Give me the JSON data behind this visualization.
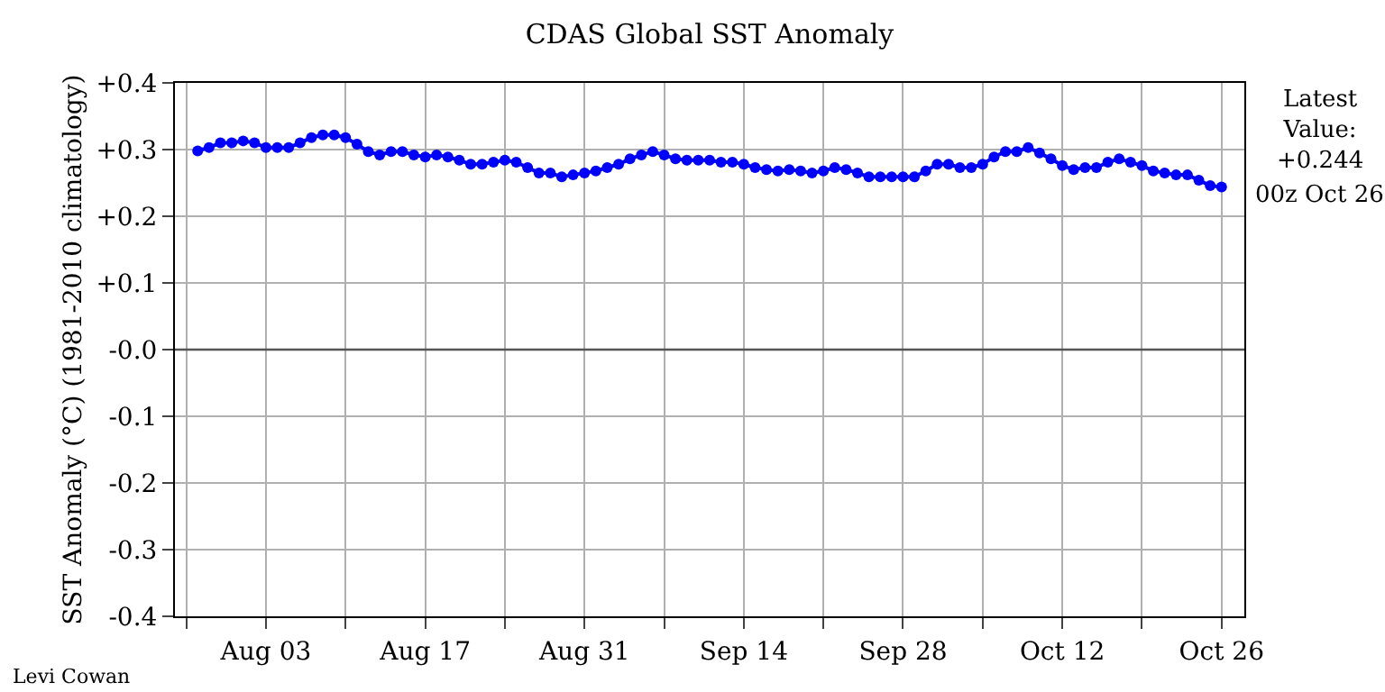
{
  "chart_data": {
    "type": "line",
    "title": "CDAS Global SST Anomaly",
    "ylabel": "SST Anomaly (°C) (1981-2010 climatology)",
    "x": [
      "--07-28",
      "--07-29",
      "--07-30",
      "--07-31",
      "--08-01",
      "--08-02",
      "--08-03",
      "--08-04",
      "--08-05",
      "--08-06",
      "--08-07",
      "--08-08",
      "--08-09",
      "--08-10",
      "--08-11",
      "--08-12",
      "--08-13",
      "--08-14",
      "--08-15",
      "--08-16",
      "--08-17",
      "--08-18",
      "--08-19",
      "--08-20",
      "--08-21",
      "--08-22",
      "--08-23",
      "--08-24",
      "--08-25",
      "--08-26",
      "--08-27",
      "--08-28",
      "--08-29",
      "--08-30",
      "--08-31",
      "--09-01",
      "--09-02",
      "--09-03",
      "--09-04",
      "--09-05",
      "--09-06",
      "--09-07",
      "--09-08",
      "--09-09",
      "--09-10",
      "--09-11",
      "--09-12",
      "--09-13",
      "--09-14",
      "--09-15",
      "--09-16",
      "--09-17",
      "--09-18",
      "--09-19",
      "--09-20",
      "--09-21",
      "--09-22",
      "--09-23",
      "--09-24",
      "--09-25",
      "--09-26",
      "--09-27",
      "--09-28",
      "--09-29",
      "--09-30",
      "--10-01",
      "--10-02",
      "--10-03",
      "--10-04",
      "--10-05",
      "--10-06",
      "--10-07",
      "--10-08",
      "--10-09",
      "--10-10",
      "--10-11",
      "--10-12",
      "--10-13",
      "--10-14",
      "--10-15",
      "--10-16",
      "--10-17",
      "--10-18",
      "--10-19",
      "--10-20",
      "--10-21",
      "--10-22",
      "--10-23",
      "--10-24",
      "--10-25",
      "--10-26"
    ],
    "series": [
      {
        "color": "#0000ff",
        "values": [
          0.298,
          0.303,
          0.31,
          0.31,
          0.313,
          0.31,
          0.303,
          0.303,
          0.303,
          0.31,
          0.318,
          0.322,
          0.322,
          0.318,
          0.308,
          0.297,
          0.292,
          0.297,
          0.297,
          0.292,
          0.289,
          0.292,
          0.289,
          0.284,
          0.278,
          0.278,
          0.281,
          0.284,
          0.281,
          0.273,
          0.265,
          0.265,
          0.259,
          0.262,
          0.265,
          0.268,
          0.273,
          0.278,
          0.286,
          0.292,
          0.297,
          0.292,
          0.286,
          0.284,
          0.284,
          0.284,
          0.281,
          0.281,
          0.278,
          0.273,
          0.27,
          0.268,
          0.27,
          0.268,
          0.265,
          0.268,
          0.273,
          0.27,
          0.265,
          0.259,
          0.259,
          0.259,
          0.259,
          0.259,
          0.268,
          0.278,
          0.278,
          0.273,
          0.273,
          0.278,
          0.289,
          0.297,
          0.297,
          0.303,
          0.295,
          0.286,
          0.276,
          0.27,
          0.273,
          0.273,
          0.281,
          0.286,
          0.281,
          0.276,
          0.268,
          0.265,
          0.262,
          0.262,
          0.254,
          0.246,
          0.244
        ]
      }
    ],
    "marker": "circle",
    "line_style": "solid",
    "grid": true,
    "xlim": [
      "--07-26",
      "--10-28"
    ],
    "xticks": [
      {
        "value": "--07-27",
        "label": null
      },
      {
        "value": "--08-03",
        "label": "Aug 03"
      },
      {
        "value": "--08-10",
        "label": null
      },
      {
        "value": "--08-17",
        "label": "Aug 17"
      },
      {
        "value": "--08-24",
        "label": null
      },
      {
        "value": "--08-31",
        "label": "Aug 31"
      },
      {
        "value": "--09-07",
        "label": null
      },
      {
        "value": "--09-14",
        "label": "Sep 14"
      },
      {
        "value": "--09-21",
        "label": null
      },
      {
        "value": "--09-28",
        "label": "Sep 28"
      },
      {
        "value": "--10-05",
        "label": null
      },
      {
        "value": "--10-12",
        "label": "Oct 12"
      },
      {
        "value": "--10-19",
        "label": null
      },
      {
        "value": "--10-26",
        "label": "Oct 26"
      }
    ],
    "ylim": [
      -0.4,
      0.4
    ],
    "yticks": [
      {
        "value": -0.4,
        "label": "-0.4"
      },
      {
        "value": -0.3,
        "label": "-0.3"
      },
      {
        "value": -0.2,
        "label": "-0.2"
      },
      {
        "value": -0.1,
        "label": "-0.1"
      },
      {
        "value": 0,
        "label": "-0.0"
      },
      {
        "value": 0.1,
        "label": "+0.1"
      },
      {
        "value": 0.2,
        "label": "+0.2"
      },
      {
        "value": 0.3,
        "label": "+0.3"
      },
      {
        "value": 0.4,
        "label": "+0.4"
      }
    ],
    "ref_lines": [
      {
        "axis": "y",
        "value": 0,
        "color": "#555555"
      }
    ],
    "annotations": [
      "Latest\nValue:\n+0.244",
      "00z Oct 26",
      "Levi Cowan"
    ]
  }
}
